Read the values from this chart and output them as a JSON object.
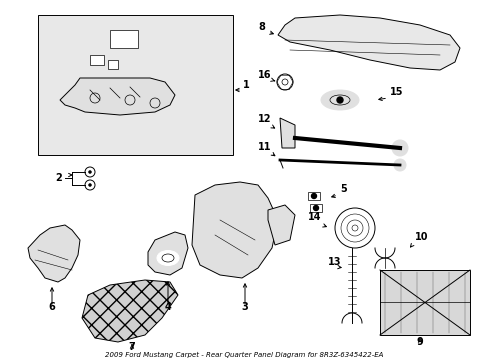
{
  "title": "2009 Ford Mustang Carpet - Rear Quarter Panel Diagram for 8R3Z-6345422-EA",
  "bg": "#ffffff",
  "lc": "#000000",
  "fig_width": 4.89,
  "fig_height": 3.6,
  "dpi": 100
}
